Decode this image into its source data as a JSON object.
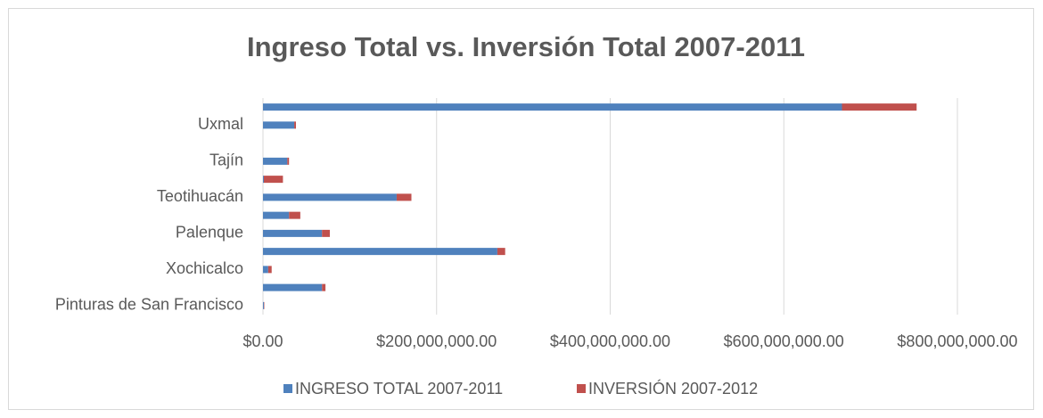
{
  "chart_data": {
    "type": "stacked_barh",
    "title": "Ingreso Total vs. Inversión Total 2007-2011",
    "categories": [
      "Pinturas de San Francisco",
      null,
      "Xochicalco",
      null,
      "Palenque",
      null,
      "Teotihuacán",
      null,
      "Tajín",
      null,
      "Uxmal",
      null
    ],
    "series": [
      {
        "name": "INGRESO TOTAL 2007-2011",
        "color": "#4f81bd",
        "values": [
          1000000,
          68000000,
          6000000,
          270000000,
          68000000,
          30000000,
          154000000,
          1000000,
          28000000,
          0,
          36000000,
          667000000
        ]
      },
      {
        "name": "INVERSIÓN 2007-2012",
        "color": "#c0504d",
        "values": [
          500000,
          4000000,
          4000000,
          9000000,
          9000000,
          13000000,
          17000000,
          22000000,
          2000000,
          0,
          2000000,
          86000000
        ]
      }
    ],
    "xlim": [
      0,
      800000000
    ],
    "xticks": [
      {
        "value": 0,
        "label": "$0.00"
      },
      {
        "value": 200000000,
        "label": "$200,000,000.00"
      },
      {
        "value": 400000000,
        "label": "$400,000,000.00"
      },
      {
        "value": 600000000,
        "label": "$600,000,000.00"
      },
      {
        "value": 800000000,
        "label": "$800,000,000.00"
      }
    ],
    "grid": true,
    "legend": "bottom"
  }
}
